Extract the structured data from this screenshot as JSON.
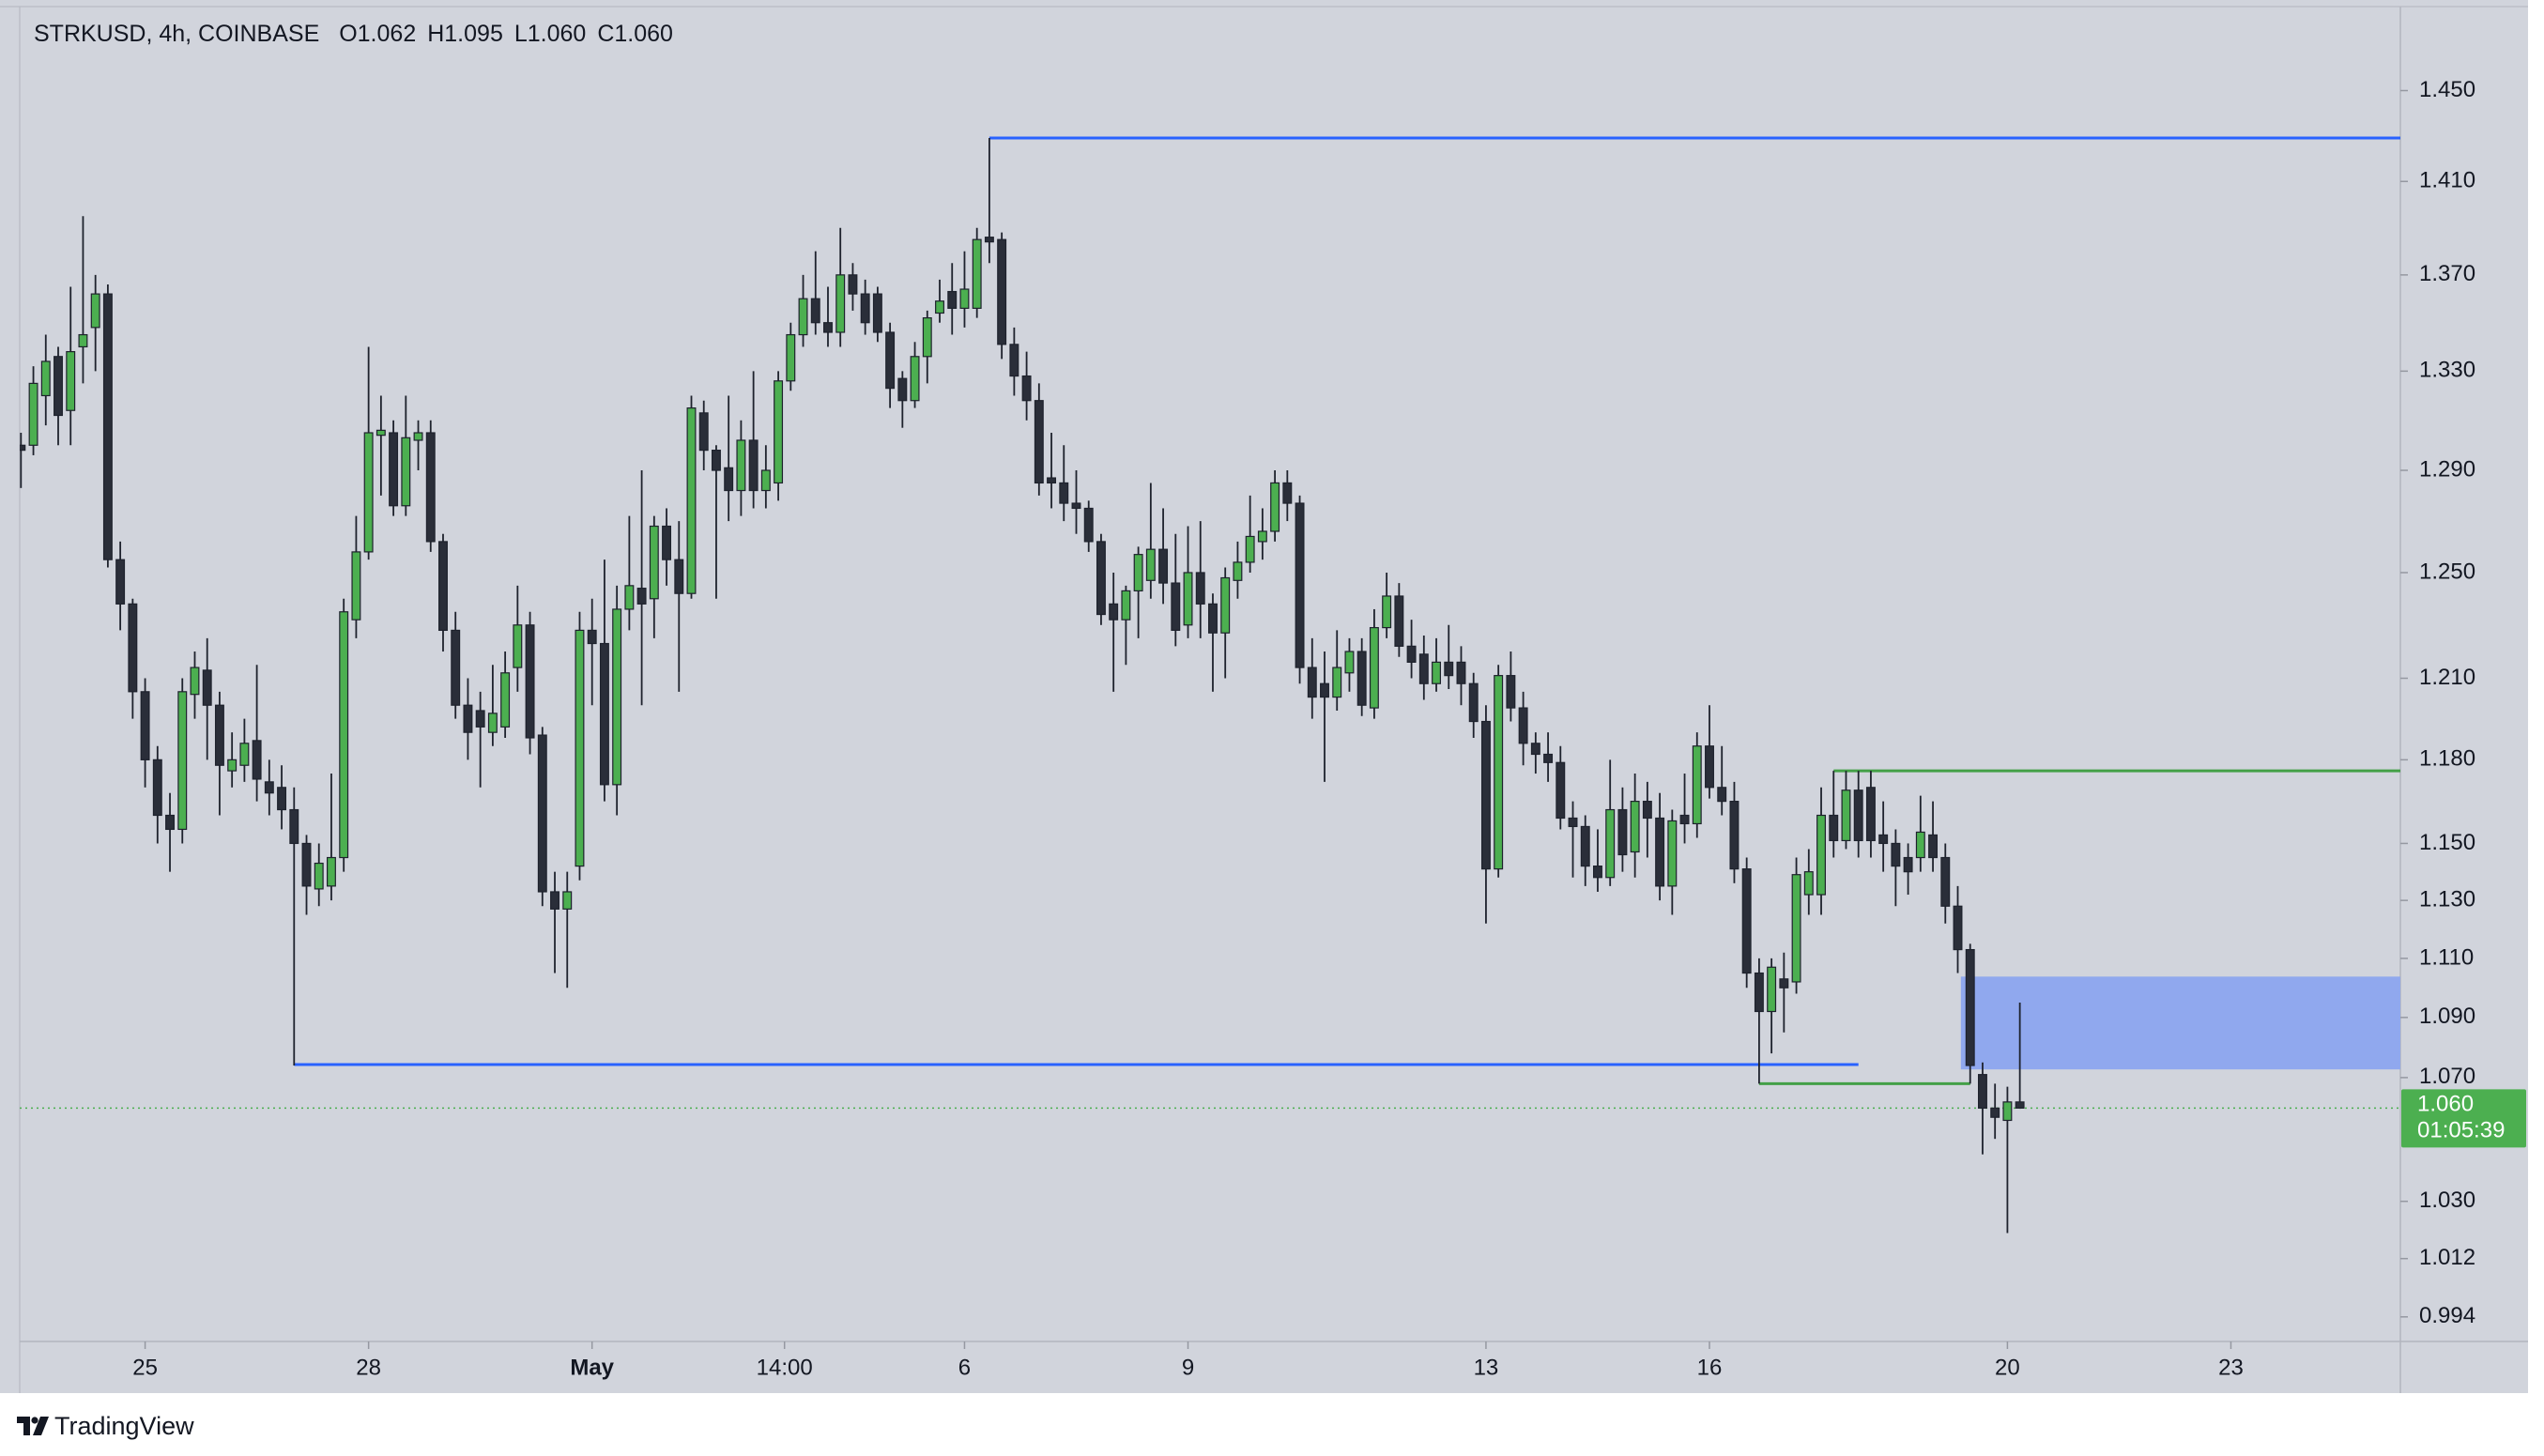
{
  "header": {
    "symbol": "STRKUSD, 4h, COINBASE",
    "ohlc": [
      {
        "key": "O",
        "value": "1.062"
      },
      {
        "key": "H",
        "value": "1.095"
      },
      {
        "key": "L",
        "value": "1.060"
      },
      {
        "key": "C",
        "value": "1.060"
      }
    ]
  },
  "footer": {
    "brand": "TradingView"
  },
  "chart_data": {
    "type": "candlestick",
    "log_scale": true,
    "up_color": "#4caf50",
    "down_color": "#2a2e39",
    "ylim": [
      0.9865,
      1.488
    ],
    "yticks": [
      {
        "value": 1.45,
        "label": "1.450"
      },
      {
        "value": 1.41,
        "label": "1.410"
      },
      {
        "value": 1.37,
        "label": "1.370"
      },
      {
        "value": 1.33,
        "label": "1.330"
      },
      {
        "value": 1.29,
        "label": "1.290"
      },
      {
        "value": 1.25,
        "label": "1.250"
      },
      {
        "value": 1.21,
        "label": "1.210"
      },
      {
        "value": 1.18,
        "label": "1.180"
      },
      {
        "value": 1.15,
        "label": "1.150"
      },
      {
        "value": 1.13,
        "label": "1.130"
      },
      {
        "value": 1.11,
        "label": "1.110"
      },
      {
        "value": 1.09,
        "label": "1.090"
      },
      {
        "value": 1.07,
        "label": "1.070"
      },
      {
        "value": 1.03,
        "label": "1.030"
      },
      {
        "value": 1.012,
        "label": "1.012"
      },
      {
        "value": 0.994,
        "label": "0.994"
      }
    ],
    "xlim": [
      -40.4,
      726.6
    ],
    "xticks": [
      {
        "value": 0,
        "label": "25"
      },
      {
        "value": 72,
        "label": "28"
      },
      {
        "value": 144,
        "label": "May"
      },
      {
        "value": 206,
        "label": "14:00"
      },
      {
        "value": 264,
        "label": "6"
      },
      {
        "value": 336,
        "label": "9"
      },
      {
        "value": 432,
        "label": "13"
      },
      {
        "value": 504,
        "label": "16"
      },
      {
        "value": 600,
        "label": "20"
      },
      {
        "value": 672,
        "label": "23"
      }
    ],
    "x": [
      -40,
      -36,
      -32,
      -28,
      -24,
      -20,
      -16,
      -12,
      -8,
      -4,
      0,
      4,
      8,
      12,
      16,
      20,
      24,
      28,
      32,
      36,
      40,
      44,
      48,
      52,
      56,
      60,
      64,
      68,
      72,
      76,
      80,
      84,
      88,
      92,
      96,
      100,
      104,
      108,
      112,
      116,
      120,
      124,
      128,
      132,
      136,
      140,
      144,
      148,
      152,
      156,
      160,
      164,
      168,
      172,
      176,
      180,
      184,
      188,
      192,
      196,
      200,
      204,
      208,
      212,
      216,
      220,
      224,
      228,
      232,
      236,
      240,
      244,
      248,
      252,
      256,
      260,
      264,
      268,
      272,
      276,
      280,
      284,
      288,
      292,
      296,
      300,
      304,
      308,
      312,
      316,
      320,
      324,
      328,
      332,
      336,
      340,
      344,
      348,
      352,
      356,
      360,
      364,
      368,
      372,
      376,
      380,
      384,
      388,
      392,
      396,
      400,
      404,
      408,
      412,
      416,
      420,
      424,
      428,
      432,
      436,
      440,
      444,
      448,
      452,
      456,
      460,
      464,
      468,
      472,
      476,
      480,
      484,
      488,
      492,
      496,
      500,
      504,
      508,
      512,
      516,
      520,
      524,
      528,
      532,
      536,
      540,
      544,
      548,
      552,
      556,
      560,
      564,
      568,
      572,
      576,
      580,
      584,
      588,
      592,
      596,
      600,
      604
    ],
    "ohlc": [
      [
        1.3,
        1.305,
        1.283,
        1.298
      ],
      [
        1.3,
        1.332,
        1.296,
        1.325
      ],
      [
        1.32,
        1.345,
        1.308,
        1.334
      ],
      [
        1.336,
        1.34,
        1.3,
        1.312
      ],
      [
        1.314,
        1.365,
        1.3,
        1.338
      ],
      [
        1.34,
        1.395,
        1.325,
        1.345
      ],
      [
        1.348,
        1.37,
        1.33,
        1.362
      ],
      [
        1.362,
        1.366,
        1.252,
        1.255
      ],
      [
        1.255,
        1.262,
        1.228,
        1.238
      ],
      [
        1.238,
        1.24,
        1.195,
        1.205
      ],
      [
        1.205,
        1.21,
        1.17,
        1.18
      ],
      [
        1.18,
        1.185,
        1.15,
        1.16
      ],
      [
        1.16,
        1.168,
        1.14,
        1.155
      ],
      [
        1.155,
        1.21,
        1.15,
        1.205
      ],
      [
        1.204,
        1.22,
        1.195,
        1.214
      ],
      [
        1.213,
        1.225,
        1.18,
        1.2
      ],
      [
        1.2,
        1.205,
        1.16,
        1.178
      ],
      [
        1.176,
        1.19,
        1.17,
        1.18
      ],
      [
        1.178,
        1.195,
        1.172,
        1.186
      ],
      [
        1.187,
        1.215,
        1.165,
        1.173
      ],
      [
        1.172,
        1.18,
        1.16,
        1.168
      ],
      [
        1.17,
        1.178,
        1.155,
        1.162
      ],
      [
        1.162,
        1.17,
        1.074,
        1.15
      ],
      [
        1.15,
        1.153,
        1.125,
        1.135
      ],
      [
        1.134,
        1.15,
        1.128,
        1.143
      ],
      [
        1.135,
        1.175,
        1.13,
        1.145
      ],
      [
        1.145,
        1.24,
        1.14,
        1.235
      ],
      [
        1.232,
        1.272,
        1.225,
        1.258
      ],
      [
        1.258,
        1.34,
        1.255,
        1.305
      ],
      [
        1.304,
        1.32,
        1.28,
        1.306
      ],
      [
        1.305,
        1.31,
        1.272,
        1.276
      ],
      [
        1.276,
        1.32,
        1.272,
        1.303
      ],
      [
        1.302,
        1.31,
        1.29,
        1.305
      ],
      [
        1.305,
        1.31,
        1.258,
        1.262
      ],
      [
        1.262,
        1.265,
        1.22,
        1.228
      ],
      [
        1.228,
        1.235,
        1.195,
        1.2
      ],
      [
        1.2,
        1.21,
        1.18,
        1.19
      ],
      [
        1.198,
        1.205,
        1.17,
        1.192
      ],
      [
        1.19,
        1.215,
        1.185,
        1.197
      ],
      [
        1.192,
        1.22,
        1.188,
        1.212
      ],
      [
        1.214,
        1.245,
        1.205,
        1.23
      ],
      [
        1.23,
        1.235,
        1.182,
        1.188
      ],
      [
        1.189,
        1.192,
        1.128,
        1.133
      ],
      [
        1.133,
        1.14,
        1.105,
        1.127
      ],
      [
        1.127,
        1.14,
        1.1,
        1.133
      ],
      [
        1.142,
        1.235,
        1.137,
        1.228
      ],
      [
        1.228,
        1.24,
        1.2,
        1.223
      ],
      [
        1.223,
        1.255,
        1.165,
        1.171
      ],
      [
        1.171,
        1.245,
        1.16,
        1.236
      ],
      [
        1.236,
        1.272,
        1.228,
        1.245
      ],
      [
        1.244,
        1.29,
        1.2,
        1.238
      ],
      [
        1.24,
        1.272,
        1.225,
        1.268
      ],
      [
        1.268,
        1.275,
        1.245,
        1.255
      ],
      [
        1.255,
        1.27,
        1.205,
        1.242
      ],
      [
        1.242,
        1.32,
        1.24,
        1.315
      ],
      [
        1.313,
        1.318,
        1.29,
        1.298
      ],
      [
        1.298,
        1.3,
        1.24,
        1.29
      ],
      [
        1.291,
        1.32,
        1.27,
        1.282
      ],
      [
        1.282,
        1.31,
        1.272,
        1.302
      ],
      [
        1.302,
        1.33,
        1.275,
        1.282
      ],
      [
        1.282,
        1.3,
        1.275,
        1.29
      ],
      [
        1.285,
        1.33,
        1.278,
        1.326
      ],
      [
        1.326,
        1.35,
        1.322,
        1.345
      ],
      [
        1.345,
        1.37,
        1.34,
        1.36
      ],
      [
        1.36,
        1.38,
        1.345,
        1.35
      ],
      [
        1.35,
        1.365,
        1.34,
        1.346
      ],
      [
        1.346,
        1.39,
        1.34,
        1.37
      ],
      [
        1.37,
        1.375,
        1.355,
        1.362
      ],
      [
        1.362,
        1.368,
        1.345,
        1.35
      ],
      [
        1.362,
        1.365,
        1.342,
        1.346
      ],
      [
        1.346,
        1.35,
        1.315,
        1.323
      ],
      [
        1.327,
        1.33,
        1.307,
        1.318
      ],
      [
        1.318,
        1.342,
        1.315,
        1.336
      ],
      [
        1.336,
        1.355,
        1.325,
        1.352
      ],
      [
        1.354,
        1.368,
        1.35,
        1.359
      ],
      [
        1.363,
        1.375,
        1.345,
        1.356
      ],
      [
        1.356,
        1.38,
        1.348,
        1.364
      ],
      [
        1.356,
        1.39,
        1.352,
        1.385
      ],
      [
        1.386,
        1.429,
        1.375,
        1.384
      ],
      [
        1.385,
        1.388,
        1.335,
        1.341
      ],
      [
        1.341,
        1.348,
        1.32,
        1.328
      ],
      [
        1.328,
        1.338,
        1.31,
        1.318
      ],
      [
        1.318,
        1.325,
        1.28,
        1.285
      ],
      [
        1.287,
        1.305,
        1.275,
        1.285
      ],
      [
        1.285,
        1.3,
        1.27,
        1.277
      ],
      [
        1.277,
        1.29,
        1.265,
        1.275
      ],
      [
        1.275,
        1.278,
        1.258,
        1.262
      ],
      [
        1.262,
        1.265,
        1.23,
        1.234
      ],
      [
        1.238,
        1.25,
        1.205,
        1.232
      ],
      [
        1.232,
        1.245,
        1.215,
        1.243
      ],
      [
        1.243,
        1.26,
        1.225,
        1.257
      ],
      [
        1.247,
        1.285,
        1.24,
        1.259
      ],
      [
        1.259,
        1.275,
        1.238,
        1.246
      ],
      [
        1.246,
        1.265,
        1.222,
        1.228
      ],
      [
        1.23,
        1.268,
        1.225,
        1.25
      ],
      [
        1.25,
        1.27,
        1.225,
        1.238
      ],
      [
        1.238,
        1.242,
        1.205,
        1.227
      ],
      [
        1.227,
        1.252,
        1.21,
        1.248
      ],
      [
        1.247,
        1.262,
        1.24,
        1.254
      ],
      [
        1.254,
        1.28,
        1.25,
        1.264
      ],
      [
        1.262,
        1.275,
        1.255,
        1.266
      ],
      [
        1.266,
        1.29,
        1.262,
        1.285
      ],
      [
        1.285,
        1.29,
        1.27,
        1.277
      ],
      [
        1.277,
        1.28,
        1.208,
        1.214
      ],
      [
        1.214,
        1.225,
        1.195,
        1.203
      ],
      [
        1.208,
        1.22,
        1.172,
        1.203
      ],
      [
        1.203,
        1.228,
        1.198,
        1.214
      ],
      [
        1.212,
        1.225,
        1.205,
        1.22
      ],
      [
        1.22,
        1.225,
        1.196,
        1.2
      ],
      [
        1.199,
        1.236,
        1.195,
        1.229
      ],
      [
        1.229,
        1.25,
        1.225,
        1.241
      ],
      [
        1.241,
        1.246,
        1.218,
        1.222
      ],
      [
        1.222,
        1.232,
        1.21,
        1.216
      ],
      [
        1.219,
        1.226,
        1.202,
        1.208
      ],
      [
        1.208,
        1.225,
        1.205,
        1.216
      ],
      [
        1.216,
        1.23,
        1.206,
        1.211
      ],
      [
        1.216,
        1.222,
        1.2,
        1.208
      ],
      [
        1.208,
        1.212,
        1.188,
        1.194
      ],
      [
        1.194,
        1.2,
        1.122,
        1.141
      ],
      [
        1.141,
        1.215,
        1.138,
        1.211
      ],
      [
        1.211,
        1.22,
        1.194,
        1.199
      ],
      [
        1.199,
        1.205,
        1.178,
        1.186
      ],
      [
        1.186,
        1.19,
        1.175,
        1.182
      ],
      [
        1.182,
        1.19,
        1.172,
        1.179
      ],
      [
        1.179,
        1.185,
        1.155,
        1.159
      ],
      [
        1.159,
        1.165,
        1.138,
        1.156
      ],
      [
        1.156,
        1.16,
        1.135,
        1.142
      ],
      [
        1.142,
        1.155,
        1.133,
        1.138
      ],
      [
        1.138,
        1.18,
        1.135,
        1.162
      ],
      [
        1.162,
        1.17,
        1.14,
        1.146
      ],
      [
        1.147,
        1.175,
        1.138,
        1.165
      ],
      [
        1.165,
        1.172,
        1.145,
        1.159
      ],
      [
        1.159,
        1.168,
        1.13,
        1.135
      ],
      [
        1.135,
        1.162,
        1.125,
        1.158
      ],
      [
        1.16,
        1.175,
        1.15,
        1.157
      ],
      [
        1.157,
        1.19,
        1.152,
        1.185
      ],
      [
        1.185,
        1.2,
        1.166,
        1.17
      ],
      [
        1.17,
        1.185,
        1.16,
        1.165
      ],
      [
        1.165,
        1.172,
        1.136,
        1.141
      ],
      [
        1.141,
        1.145,
        1.1,
        1.105
      ],
      [
        1.105,
        1.11,
        1.068,
        1.092
      ],
      [
        1.092,
        1.11,
        1.078,
        1.107
      ],
      [
        1.103,
        1.112,
        1.085,
        1.1
      ],
      [
        1.102,
        1.145,
        1.098,
        1.139
      ],
      [
        1.132,
        1.148,
        1.125,
        1.14
      ],
      [
        1.132,
        1.17,
        1.125,
        1.16
      ],
      [
        1.16,
        1.176,
        1.145,
        1.151
      ],
      [
        1.151,
        1.176,
        1.148,
        1.169
      ],
      [
        1.169,
        1.176,
        1.145,
        1.151
      ],
      [
        1.17,
        1.176,
        1.145,
        1.151
      ],
      [
        1.153,
        1.165,
        1.14,
        1.15
      ],
      [
        1.15,
        1.155,
        1.128,
        1.142
      ],
      [
        1.145,
        1.15,
        1.132,
        1.14
      ],
      [
        1.145,
        1.167,
        1.14,
        1.154
      ],
      [
        1.153,
        1.165,
        1.14,
        1.145
      ],
      [
        1.145,
        1.15,
        1.122,
        1.128
      ],
      [
        1.128,
        1.135,
        1.105,
        1.113
      ],
      [
        1.113,
        1.115,
        1.068,
        1.074
      ],
      [
        1.071,
        1.075,
        1.045,
        1.06
      ],
      [
        1.06,
        1.068,
        1.05,
        1.057
      ],
      [
        1.056,
        1.067,
        1.02,
        1.062
      ],
      [
        1.062,
        1.095,
        1.06,
        1.06
      ]
    ],
    "drawings": [
      {
        "kind": "line",
        "color": "#2962ff",
        "price": 1.429,
        "x": [
          272,
          726.6
        ]
      },
      {
        "kind": "line",
        "color": "#2962ff",
        "price": 1.0743,
        "x": [
          48,
          552
        ]
      },
      {
        "kind": "line",
        "color": "#43a047",
        "price": 1.176,
        "x": [
          544,
          726.6
        ]
      },
      {
        "kind": "line",
        "color": "#43a047",
        "price": 1.068,
        "x": [
          520,
          588
        ]
      },
      {
        "kind": "box",
        "color": "#90a8ee",
        "prices": [
          1.1038,
          1.0727
        ],
        "x": [
          585,
          726.6
        ]
      }
    ],
    "last_price": {
      "value": 1.06,
      "label": "1.060",
      "color": "#4caf50"
    },
    "countdown": "01:05:39"
  }
}
